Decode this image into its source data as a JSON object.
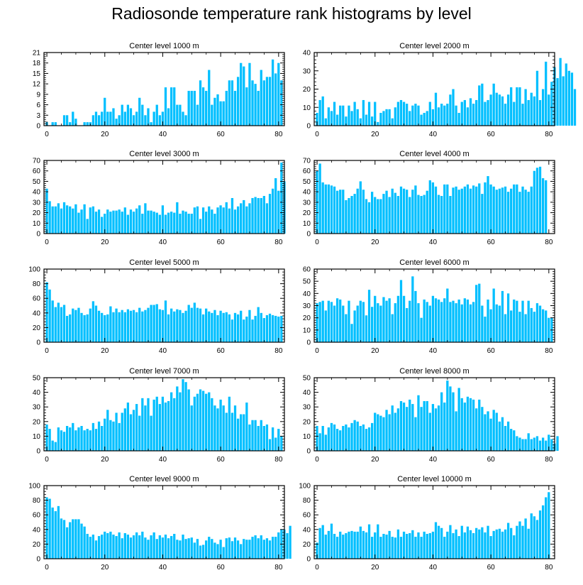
{
  "title": "Radiosonde temperature rank histograms by level",
  "bar_color": "#00bfff",
  "chart_data": [
    {
      "type": "bar",
      "title": "Center level 1000 m",
      "xlim": [
        -1,
        82
      ],
      "xticks": [
        0,
        20,
        40,
        60,
        80
      ],
      "ylim": [
        0,
        21
      ],
      "yticks": [
        0,
        3,
        6,
        9,
        12,
        15,
        18,
        21
      ],
      "values": [
        1,
        0,
        1,
        1,
        0,
        0,
        3,
        3,
        1,
        4,
        2,
        0,
        0,
        1,
        1,
        1,
        3,
        4,
        3,
        4,
        8,
        4,
        4,
        5,
        2,
        3,
        6,
        4,
        6,
        5,
        3,
        4,
        8,
        6,
        3,
        5,
        1,
        4,
        6,
        3,
        4,
        11,
        5,
        11,
        11,
        6,
        6,
        4,
        3,
        10,
        10,
        10,
        6,
        13,
        11,
        10,
        16,
        6,
        8,
        9,
        7,
        7,
        10,
        13,
        13,
        10,
        14,
        18,
        17,
        11,
        18,
        13,
        12,
        10,
        16,
        13,
        14,
        14,
        19,
        15,
        18,
        13
      ]
    },
    {
      "type": "bar",
      "title": "Center level 2000 m",
      "xlim": [
        -1,
        82
      ],
      "xticks": [
        0,
        20,
        40,
        60,
        80
      ],
      "ylim": [
        0,
        40
      ],
      "yticks": [
        0,
        10,
        20,
        30,
        40
      ],
      "values": [
        7,
        14,
        16,
        4,
        10,
        8,
        13,
        6,
        11,
        11,
        5,
        11,
        8,
        13,
        9,
        4,
        14,
        6,
        13,
        5,
        13,
        2,
        7,
        8,
        9,
        9,
        4,
        10,
        13,
        14,
        13,
        12,
        8,
        11,
        12,
        11,
        6,
        7,
        8,
        13,
        9,
        18,
        10,
        12,
        11,
        12,
        17,
        20,
        11,
        7,
        13,
        14,
        10,
        15,
        12,
        14,
        22,
        23,
        13,
        14,
        17,
        23,
        18,
        17,
        16,
        12,
        17,
        21,
        13,
        21,
        21,
        12,
        20,
        14,
        18,
        16,
        30,
        14,
        20,
        35,
        17,
        24,
        32,
        26,
        37,
        27,
        34,
        30,
        29,
        20
      ]
    },
    {
      "type": "bar",
      "title": "Center level 3000 m",
      "xlim": [
        -1,
        82
      ],
      "xticks": [
        0,
        20,
        40,
        60,
        80
      ],
      "ylim": [
        0,
        70
      ],
      "yticks": [
        0,
        10,
        20,
        30,
        40,
        50,
        60,
        70
      ],
      "values": [
        43,
        31,
        26,
        26,
        29,
        24,
        30,
        27,
        26,
        24,
        28,
        20,
        23,
        28,
        14,
        25,
        26,
        21,
        23,
        16,
        19,
        23,
        21,
        22,
        22,
        23,
        21,
        25,
        18,
        23,
        21,
        24,
        27,
        19,
        29,
        22,
        22,
        21,
        20,
        18,
        27,
        18,
        20,
        21,
        20,
        30,
        19,
        22,
        21,
        19,
        19,
        25,
        26,
        14,
        25,
        21,
        26,
        23,
        19,
        25,
        27,
        25,
        30,
        24,
        34,
        23,
        26,
        29,
        32,
        26,
        29,
        34,
        35,
        34,
        34,
        36,
        29,
        38,
        43,
        53,
        41,
        68,
        50
      ]
    },
    {
      "type": "bar",
      "title": "Center level 4000 m",
      "xlim": [
        -1,
        82
      ],
      "xticks": [
        0,
        20,
        40,
        60,
        80
      ],
      "ylim": [
        0,
        70
      ],
      "yticks": [
        0,
        10,
        20,
        30,
        40,
        50,
        60,
        70
      ],
      "values": [
        60,
        67,
        49,
        47,
        47,
        46,
        45,
        41,
        42,
        42,
        32,
        34,
        36,
        38,
        43,
        50,
        42,
        33,
        30,
        40,
        35,
        33,
        33,
        38,
        41,
        35,
        43,
        39,
        36,
        45,
        43,
        42,
        35,
        42,
        46,
        37,
        36,
        37,
        41,
        51,
        49,
        45,
        37,
        36,
        47,
        47,
        36,
        44,
        45,
        42,
        43,
        45,
        47,
        43,
        46,
        45,
        48,
        38,
        49,
        55,
        47,
        45,
        42,
        43,
        44,
        45,
        40,
        43,
        47,
        47,
        40,
        45,
        42,
        40,
        45,
        60,
        63,
        64,
        53,
        51
      ]
    },
    {
      "type": "bar",
      "title": "Center level 5000 m",
      "xlim": [
        -1,
        82
      ],
      "xticks": [
        0,
        20,
        40,
        60,
        80
      ],
      "ylim": [
        0,
        100
      ],
      "yticks": [
        0,
        20,
        40,
        60,
        80,
        100
      ],
      "values": [
        82,
        72,
        57,
        48,
        54,
        48,
        51,
        36,
        38,
        46,
        44,
        47,
        40,
        37,
        38,
        46,
        56,
        50,
        43,
        40,
        37,
        38,
        49,
        41,
        46,
        41,
        44,
        41,
        45,
        43,
        44,
        41,
        47,
        42,
        44,
        47,
        51,
        51,
        52,
        45,
        44,
        57,
        38,
        46,
        42,
        45,
        44,
        40,
        43,
        51,
        47,
        54,
        47,
        46,
        38,
        46,
        42,
        40,
        44,
        37,
        43,
        40,
        41,
        38,
        31,
        40,
        38,
        43,
        31,
        35,
        44,
        31,
        36,
        48,
        40,
        33,
        37,
        39,
        37,
        36,
        35,
        36
      ]
    },
    {
      "type": "bar",
      "title": "Center level 6000 m",
      "xlim": [
        -1,
        82
      ],
      "xticks": [
        0,
        20,
        40,
        60,
        80
      ],
      "ylim": [
        0,
        60
      ],
      "yticks": [
        0,
        10,
        20,
        30,
        40,
        50,
        60
      ],
      "values": [
        32,
        33,
        34,
        26,
        34,
        33,
        30,
        36,
        35,
        30,
        23,
        34,
        15,
        26,
        30,
        34,
        33,
        22,
        43,
        29,
        38,
        32,
        30,
        37,
        34,
        36,
        23,
        32,
        38,
        51,
        38,
        28,
        34,
        54,
        42,
        32,
        20,
        35,
        33,
        30,
        38,
        36,
        35,
        33,
        36,
        44,
        33,
        34,
        32,
        35,
        31,
        36,
        35,
        31,
        33,
        47,
        48,
        30,
        21,
        35,
        27,
        44,
        31,
        30,
        42,
        23,
        40,
        26,
        35,
        34,
        25,
        34,
        23,
        34,
        28,
        25,
        32,
        30,
        27,
        26,
        20,
        20
      ]
    },
    {
      "type": "bar",
      "title": "Center level 7000 m",
      "xlim": [
        -1,
        82
      ],
      "xticks": [
        0,
        20,
        40,
        60,
        80
      ],
      "ylim": [
        0,
        50
      ],
      "yticks": [
        0,
        10,
        20,
        30,
        40,
        50
      ],
      "values": [
        18,
        15,
        7,
        6,
        16,
        14,
        13,
        17,
        16,
        19,
        14,
        16,
        17,
        14,
        15,
        14,
        19,
        15,
        20,
        17,
        22,
        28,
        21,
        20,
        26,
        19,
        26,
        29,
        33,
        25,
        28,
        32,
        24,
        36,
        31,
        36,
        24,
        35,
        37,
        32,
        37,
        33,
        34,
        40,
        36,
        44,
        40,
        49,
        47,
        42,
        31,
        37,
        39,
        42,
        41,
        39,
        40,
        36,
        31,
        29,
        35,
        31,
        26,
        37,
        26,
        31,
        22,
        25,
        25,
        33,
        18,
        21,
        21,
        17,
        21,
        17,
        18,
        8,
        16,
        9,
        15,
        10
      ]
    },
    {
      "type": "bar",
      "title": "Center level 8000 m",
      "xlim": [
        -1,
        82
      ],
      "xticks": [
        0,
        20,
        40,
        60,
        80
      ],
      "ylim": [
        0,
        50
      ],
      "yticks": [
        0,
        10,
        20,
        30,
        40,
        50
      ],
      "values": [
        17,
        12,
        17,
        11,
        16,
        19,
        18,
        15,
        14,
        17,
        18,
        16,
        19,
        21,
        20,
        17,
        18,
        15,
        16,
        19,
        26,
        25,
        24,
        23,
        28,
        25,
        31,
        26,
        29,
        34,
        33,
        30,
        35,
        32,
        23,
        38,
        30,
        34,
        34,
        26,
        32,
        29,
        31,
        40,
        33,
        48,
        44,
        40,
        27,
        43,
        36,
        33,
        37,
        36,
        35,
        29,
        35,
        30,
        25,
        27,
        22,
        28,
        26,
        20,
        23,
        17,
        20,
        15,
        14,
        10,
        9,
        8,
        8,
        12,
        8,
        9,
        10,
        7,
        9,
        7,
        11,
        8,
        5,
        10
      ]
    },
    {
      "type": "bar",
      "title": "Center level 9000 m",
      "xlim": [
        -1,
        82
      ],
      "xticks": [
        0,
        20,
        40,
        60,
        80
      ],
      "ylim": [
        0,
        100
      ],
      "yticks": [
        0,
        20,
        40,
        60,
        80,
        100
      ],
      "values": [
        84,
        82,
        70,
        65,
        72,
        55,
        53,
        43,
        50,
        54,
        54,
        54,
        48,
        44,
        34,
        30,
        33,
        25,
        31,
        33,
        37,
        35,
        37,
        33,
        31,
        36,
        28,
        35,
        33,
        29,
        32,
        36,
        32,
        37,
        29,
        26,
        32,
        36,
        27,
        32,
        29,
        33,
        28,
        31,
        34,
        26,
        25,
        33,
        27,
        28,
        29,
        22,
        27,
        18,
        19,
        25,
        30,
        27,
        22,
        20,
        26,
        16,
        28,
        29,
        24,
        29,
        25,
        20,
        27,
        26,
        26,
        30,
        32,
        28,
        32,
        26,
        28,
        25,
        30,
        30,
        36,
        40,
        40,
        35,
        45
      ]
    },
    {
      "type": "bar",
      "title": "Center level 10000 m",
      "xlim": [
        -1,
        82
      ],
      "xticks": [
        0,
        20,
        40,
        60,
        80
      ],
      "ylim": [
        0,
        100
      ],
      "yticks": [
        0,
        20,
        40,
        60,
        80,
        100
      ],
      "values": [
        22,
        42,
        46,
        33,
        38,
        48,
        34,
        30,
        37,
        33,
        35,
        37,
        38,
        37,
        37,
        44,
        38,
        36,
        47,
        30,
        36,
        47,
        30,
        34,
        33,
        38,
        30,
        29,
        40,
        30,
        37,
        34,
        35,
        39,
        30,
        36,
        30,
        37,
        34,
        35,
        37,
        50,
        45,
        42,
        30,
        37,
        46,
        35,
        40,
        31,
        45,
        36,
        44,
        39,
        35,
        42,
        40,
        43,
        36,
        45,
        31,
        38,
        40,
        41,
        37,
        40,
        49,
        42,
        32,
        45,
        51,
        45,
        55,
        41,
        62,
        58,
        53,
        66,
        73,
        84,
        91
      ]
    }
  ]
}
